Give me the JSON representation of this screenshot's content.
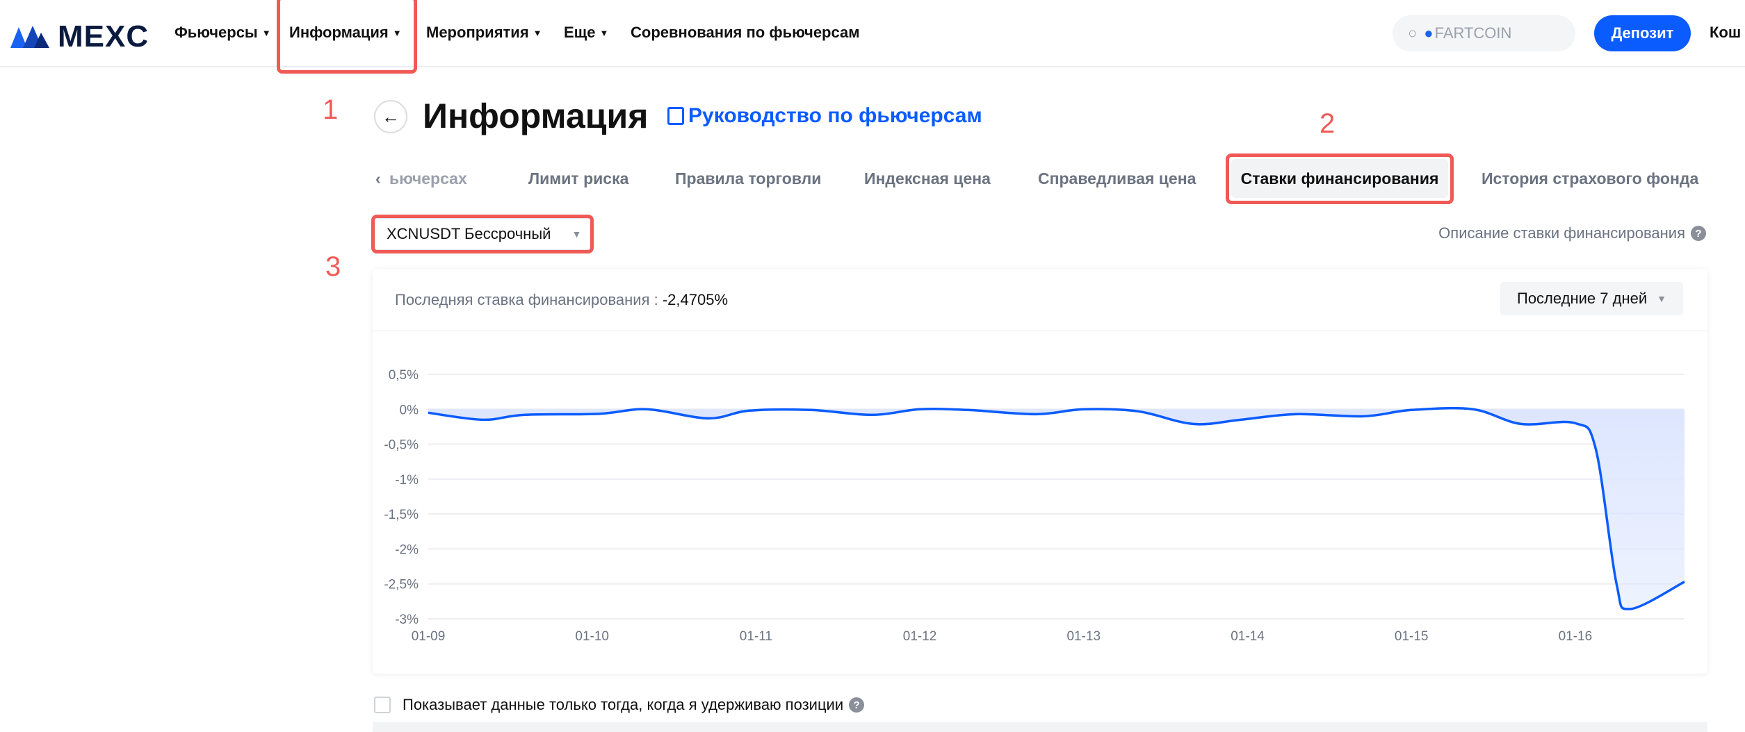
{
  "header": {
    "logo": "MEXC",
    "nav": [
      {
        "label": "Фьючерсы"
      },
      {
        "label": "Информация"
      },
      {
        "label": "Мероприятия"
      },
      {
        "label": "Еще"
      },
      {
        "label": "Соревнования по фьючерсам"
      }
    ],
    "search_placeholder": "FARTCOIN",
    "deposit_label": "Депозит",
    "wallet_label": "Кош"
  },
  "annotations": [
    "1",
    "2",
    "3"
  ],
  "page": {
    "back_icon": "arrow-left-icon",
    "title": "Информация",
    "guide_link": "Руководство по фьючерсам"
  },
  "tabs": [
    {
      "label": "ьючерсах"
    },
    {
      "label": "Лимит риска"
    },
    {
      "label": "Правила торговли"
    },
    {
      "label": "Индексная цена"
    },
    {
      "label": "Справедливая цена"
    },
    {
      "label": "Ставки финансирования",
      "active": true
    },
    {
      "label": "История страхового фонда"
    }
  ],
  "contract_select": "XCNUSDT Бессрочный",
  "funding_description_link": "Описание ставки финансирования",
  "card": {
    "last_rate_label": "Последняя ставка финансирования :",
    "last_rate_value": "-2,4705%",
    "range_select": "Последние 7 дней"
  },
  "chart_data": {
    "type": "area",
    "title": "",
    "xlabel": "",
    "ylabel": "",
    "x_ticks": [
      "01-09",
      "01-10",
      "01-11",
      "01-12",
      "01-13",
      "01-14",
      "01-15",
      "01-16"
    ],
    "y_ticks": [
      "0,5%",
      "0%",
      "-0,5%",
      "-1%",
      "-1,5%",
      "-2%",
      "-2,5%",
      "-3%"
    ],
    "ylim": [
      -3,
      0.5
    ],
    "grid": true,
    "color": "#0b5cff",
    "fill_color": "#dde6ff",
    "series": [
      {
        "x": [
          "01-09 00:00",
          "01-09 08:00",
          "01-09 14:00",
          "01-10 01:00",
          "01-10 08:00",
          "01-10 17:00",
          "01-10 23:00",
          "01-11 08:00",
          "01-11 17:00",
          "01-12 00:00",
          "01-12 07:00",
          "01-12 17:00",
          "01-13 00:00",
          "01-13 08:00",
          "01-13 16:00",
          "01-13 23:00",
          "01-14 07:00",
          "01-14 17:00",
          "01-15 00:00",
          "01-15 09:00",
          "01-15 16:00",
          "01-16 00:00",
          "01-16 03:00",
          "01-16 06:00",
          "01-16 08:00",
          "01-16 16:00"
        ],
        "y": [
          -0.05,
          -0.15,
          -0.08,
          -0.065,
          0,
          -0.13,
          -0.02,
          -0.01,
          -0.08,
          0,
          -0.01,
          -0.07,
          0,
          -0.03,
          -0.21,
          -0.15,
          -0.07,
          -0.1,
          -0.01,
          0,
          -0.21,
          -0.2,
          -0.57,
          -2.48,
          -2.86,
          -2.47
        ]
      }
    ]
  },
  "holding_filter_label": "Показывает данные только тогда, когда я удерживаю позиции",
  "colors": {
    "accent": "#0b5cff",
    "annotation": "#ef5a56"
  }
}
